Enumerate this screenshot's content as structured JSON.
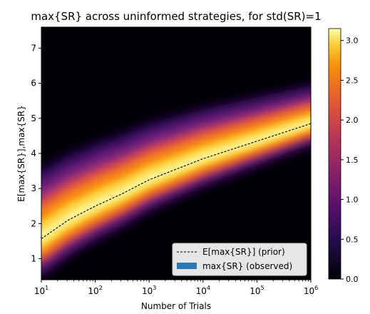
{
  "chart_data": {
    "type": "heatmap",
    "title": "max{SR} across uninformed strategies, for std(SR)=1",
    "xlabel": "Number of Trials",
    "ylabel": "E[max{SR}],max{SR}",
    "x_scale": "log",
    "x_ticks": [
      10,
      100,
      1000,
      10000,
      100000,
      1000000
    ],
    "x_tick_labels": [
      {
        "base": "10",
        "exp": "1"
      },
      {
        "base": "10",
        "exp": "2"
      },
      {
        "base": "10",
        "exp": "3"
      },
      {
        "base": "10",
        "exp": "4"
      },
      {
        "base": "10",
        "exp": "5"
      },
      {
        "base": "10",
        "exp": "6"
      }
    ],
    "xlim": [
      10,
      1000000
    ],
    "ylim": [
      0.4,
      7.6
    ],
    "y_ticks": [
      1,
      2,
      3,
      4,
      5,
      6,
      7
    ],
    "colorbar": {
      "colormap": "inferno",
      "range": [
        0,
        3.15
      ],
      "ticks": [
        0.0,
        0.5,
        1.0,
        1.5,
        2.0,
        2.5,
        3.0
      ],
      "tick_labels": [
        "0.0",
        "0.5",
        "1.0",
        "1.5",
        "2.0",
        "2.5",
        "3.0"
      ]
    },
    "series": [
      {
        "name": "E[max{SR}] (prior)",
        "style": "dashed",
        "color": "#000000",
        "x": [
          10,
          31.6,
          100,
          316,
          1000,
          3162,
          10000,
          31623,
          100000,
          316228,
          1000000
        ],
        "y": [
          1.57,
          2.1,
          2.5,
          2.85,
          3.25,
          3.55,
          3.85,
          4.1,
          4.35,
          4.6,
          4.85
        ]
      },
      {
        "name": "max{SR} (observed)",
        "style": "density",
        "color": "#2a7ab8"
      }
    ],
    "legend": {
      "position": "lower-right"
    }
  }
}
